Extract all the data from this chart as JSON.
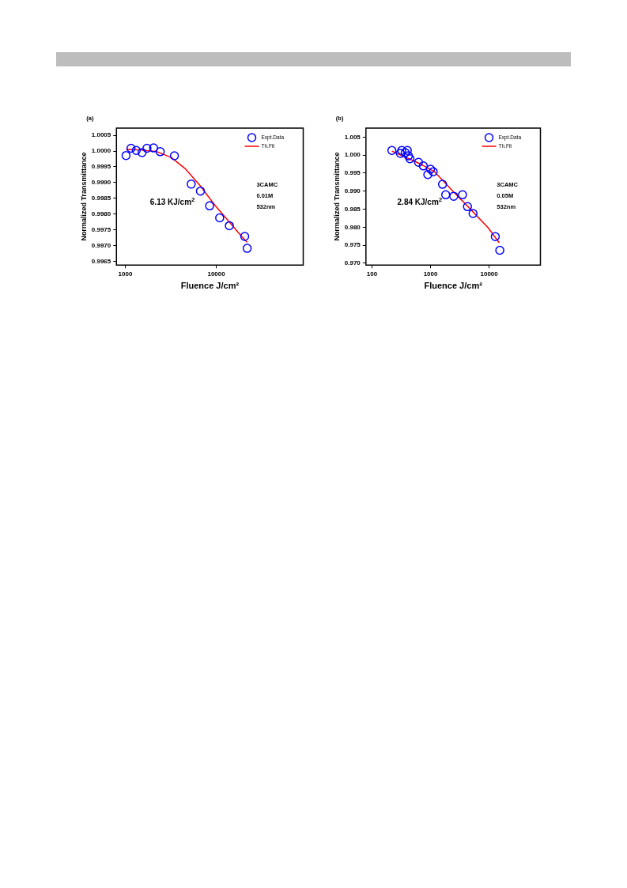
{
  "chart_data": [
    {
      "type": "scatter",
      "xlabel": "Fluence J/cm²",
      "ylabel": "Normalized Transmittance",
      "log": "x",
      "grid": false,
      "legend": "top right",
      "xlim": [
        800,
        90000
      ],
      "ylim": [
        0.99638,
        1.00073
      ],
      "xticks": [
        1000,
        10000
      ],
      "yticks": [
        0.9965,
        {
          "value": 0.997,
          "label": "0.9970"
        },
        0.9975,
        {
          "value": 0.998,
          "label": "0.9980"
        },
        0.9985,
        {
          "value": 0.999,
          "label": "0.9990"
        },
        0.9995,
        {
          "value": 1,
          "label": "1.0000"
        },
        1.0005
      ],
      "annotations": [
        "(a)",
        "6.13 KJ/cm$^{2}$",
        "3CAMC",
        "0.01M",
        "532nm"
      ],
      "series": [
        {
          "name": "Expt.Data",
          "type": "scatter",
          "marker": "circle",
          "color": "#0000ff",
          "x": [
            1020,
            1157,
            1320,
            1527,
            1730,
            2047,
            2420,
            3465,
            5300,
            6690,
            8440,
            10881,
            13900,
            20500,
            21800
          ],
          "values": [
            0.99986,
            1.00009,
            1.00002,
            0.99995,
            1.00009,
            1.0001,
            0.99998,
            0.99985,
            0.99895,
            0.99873,
            0.99826,
            0.99788,
            0.99763,
            0.99729,
            0.99691
          ]
        },
        {
          "name": "Th.Fit",
          "type": "line",
          "marker": "none",
          "line_style": "solid",
          "color": "#ff0000",
          "x": [
            1020,
            1550,
            2230,
            3220,
            4640,
            6690,
            9640,
            13900,
            17300,
            21800
          ],
          "values": [
            1.00006,
            1.00003,
            0.99998,
            0.99979,
            0.99942,
            0.99889,
            0.99828,
            0.99775,
            0.99742,
            0.9971
          ]
        }
      ]
    },
    {
      "type": "scatter",
      "xlabel": "Fluence J/cm²",
      "ylabel": "Normalized Transmittance",
      "log": "x",
      "grid": false,
      "legend": "top right",
      "xlim": [
        79,
        75000
      ],
      "ylim": [
        0.9695,
        1.0075
      ],
      "xticks": [
        100,
        1000,
        10000
      ],
      "yticks": [
        1.005,
        {
          "value": 1,
          "label": "1.000"
        },
        0.995,
        {
          "value": 0.99,
          "label": "0.990"
        },
        0.985,
        {
          "value": 0.98,
          "label": "0.980"
        },
        0.975,
        {
          "value": 0.97,
          "label": "0.970"
        }
      ],
      "annotations": [
        "(b)",
        "2.84 KJ/cm$^{2}$",
        "3CAMC",
        "0.05M",
        "532nm"
      ],
      "series": [
        {
          "name": "Expt.Data",
          "type": "scatter",
          "marker": "circle",
          "color": "#0000ff",
          "x": [
            219,
            306,
            323,
            370,
            402,
            419,
            446,
            624,
            753,
            899,
            1000,
            1110,
            1600,
            1815,
            2488,
            3510,
            4270,
            5310,
            12740,
            15200
          ],
          "values": [
            1.0013,
            1.0005,
            1.0013,
            1.0007,
            1.0013,
            0.9998,
            0.999,
            0.998,
            0.997,
            0.9946,
            0.9961,
            0.9954,
            0.9919,
            0.989,
            0.9886,
            0.989,
            0.9857,
            0.9838,
            0.9774,
            0.9736
          ]
        },
        {
          "name": "Th.Fit",
          "type": "line",
          "marker": "none",
          "line_style": "solid",
          "color": "#ff0000",
          "x": [
            219,
            624,
            1170,
            2440,
            5070,
            9530,
            14900
          ],
          "values": [
            1.0011,
            0.9978,
            0.9954,
            0.9899,
            0.9846,
            0.9799,
            0.9757
          ]
        }
      ]
    }
  ]
}
